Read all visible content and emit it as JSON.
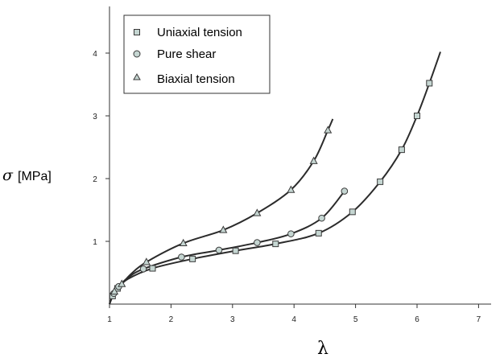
{
  "chart_data": {
    "type": "scatter",
    "title": "",
    "xlabel": "λ",
    "ylabel": {
      "symbol": "σ",
      "unit": "[MPa]"
    },
    "xlim": [
      1,
      7.1
    ],
    "ylim": [
      0,
      4.7
    ],
    "x_ticks": [
      "1",
      "2",
      "3",
      "4",
      "5",
      "6",
      "7"
    ],
    "y_ticks": [
      "1",
      "2",
      "3",
      "4"
    ],
    "grid": false,
    "legend_position": "top-left",
    "series": [
      {
        "name": "Uniaxial tension",
        "marker": "square",
        "marker_color": "#c5d6d2",
        "points": [
          {
            "x": 1.05,
            "y": 0.13
          },
          {
            "x": 1.13,
            "y": 0.25
          },
          {
            "x": 1.7,
            "y": 0.57
          },
          {
            "x": 2.35,
            "y": 0.72
          },
          {
            "x": 3.05,
            "y": 0.85
          },
          {
            "x": 3.7,
            "y": 0.96
          },
          {
            "x": 4.4,
            "y": 1.13
          },
          {
            "x": 4.95,
            "y": 1.47
          },
          {
            "x": 5.4,
            "y": 1.95
          },
          {
            "x": 5.75,
            "y": 2.46
          },
          {
            "x": 6.0,
            "y": 3.0
          },
          {
            "x": 6.2,
            "y": 3.52
          }
        ],
        "curve": [
          {
            "x": 1.0,
            "y": 0.0
          },
          {
            "x": 1.05,
            "y": 0.13
          },
          {
            "x": 1.13,
            "y": 0.25
          },
          {
            "x": 1.3,
            "y": 0.4
          },
          {
            "x": 1.7,
            "y": 0.57
          },
          {
            "x": 2.35,
            "y": 0.72
          },
          {
            "x": 3.05,
            "y": 0.85
          },
          {
            "x": 3.7,
            "y": 0.96
          },
          {
            "x": 4.4,
            "y": 1.13
          },
          {
            "x": 4.95,
            "y": 1.47
          },
          {
            "x": 5.4,
            "y": 1.95
          },
          {
            "x": 5.75,
            "y": 2.46
          },
          {
            "x": 6.0,
            "y": 3.0
          },
          {
            "x": 6.2,
            "y": 3.52
          },
          {
            "x": 6.38,
            "y": 4.02
          }
        ]
      },
      {
        "name": "Pure shear",
        "marker": "circle",
        "marker_color": "#c5d6d2",
        "points": [
          {
            "x": 1.07,
            "y": 0.17
          },
          {
            "x": 1.15,
            "y": 0.28
          },
          {
            "x": 1.55,
            "y": 0.56
          },
          {
            "x": 2.17,
            "y": 0.75
          },
          {
            "x": 2.78,
            "y": 0.86
          },
          {
            "x": 3.4,
            "y": 0.98
          },
          {
            "x": 3.95,
            "y": 1.12
          },
          {
            "x": 4.45,
            "y": 1.37
          },
          {
            "x": 4.82,
            "y": 1.8
          }
        ],
        "curve": [
          {
            "x": 1.0,
            "y": 0.0
          },
          {
            "x": 1.07,
            "y": 0.17
          },
          {
            "x": 1.15,
            "y": 0.28
          },
          {
            "x": 1.3,
            "y": 0.42
          },
          {
            "x": 1.55,
            "y": 0.56
          },
          {
            "x": 2.17,
            "y": 0.75
          },
          {
            "x": 2.78,
            "y": 0.86
          },
          {
            "x": 3.4,
            "y": 0.98
          },
          {
            "x": 3.95,
            "y": 1.12
          },
          {
            "x": 4.45,
            "y": 1.37
          },
          {
            "x": 4.82,
            "y": 1.8
          }
        ]
      },
      {
        "name": "Biaxial tension",
        "marker": "triangle",
        "marker_color": "#c5d6d2",
        "points": [
          {
            "x": 1.08,
            "y": 0.2
          },
          {
            "x": 1.2,
            "y": 0.32
          },
          {
            "x": 1.6,
            "y": 0.67
          },
          {
            "x": 2.2,
            "y": 0.97
          },
          {
            "x": 2.85,
            "y": 1.18
          },
          {
            "x": 3.4,
            "y": 1.45
          },
          {
            "x": 3.95,
            "y": 1.82
          },
          {
            "x": 4.32,
            "y": 2.28
          },
          {
            "x": 4.55,
            "y": 2.77
          }
        ],
        "curve": [
          {
            "x": 1.0,
            "y": 0.0
          },
          {
            "x": 1.08,
            "y": 0.2
          },
          {
            "x": 1.2,
            "y": 0.32
          },
          {
            "x": 1.35,
            "y": 0.48
          },
          {
            "x": 1.6,
            "y": 0.67
          },
          {
            "x": 2.2,
            "y": 0.97
          },
          {
            "x": 2.85,
            "y": 1.18
          },
          {
            "x": 3.4,
            "y": 1.45
          },
          {
            "x": 3.95,
            "y": 1.82
          },
          {
            "x": 4.32,
            "y": 2.28
          },
          {
            "x": 4.55,
            "y": 2.77
          },
          {
            "x": 4.63,
            "y": 2.95
          }
        ]
      }
    ]
  }
}
